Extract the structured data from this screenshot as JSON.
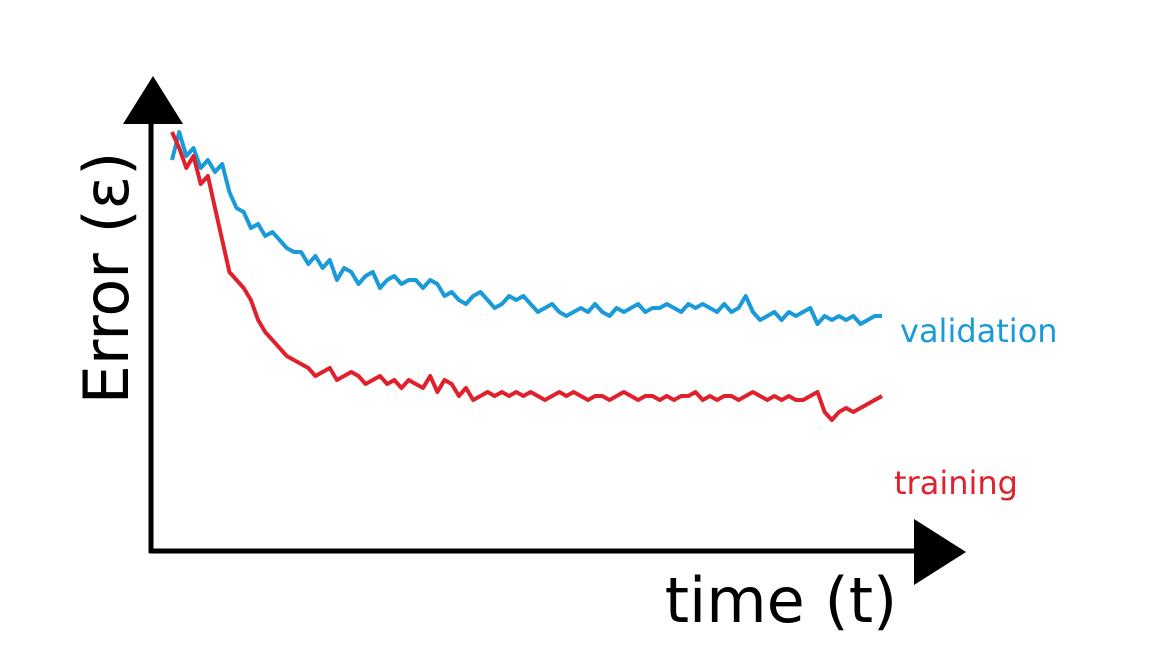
{
  "chart_data": {
    "type": "line",
    "xlabel": "time (t)",
    "ylabel": "Error (ε)",
    "title": "",
    "axis_ticks": "none",
    "grid": false,
    "axis_color": "#000000",
    "series": [
      {
        "name": "validation",
        "color": "#1a9ad8",
        "label_position": "right-end",
        "values": [
          0.9,
          0.97,
          0.91,
          0.93,
          0.88,
          0.9,
          0.87,
          0.89,
          0.82,
          0.78,
          0.77,
          0.73,
          0.74,
          0.71,
          0.72,
          0.7,
          0.68,
          0.67,
          0.67,
          0.64,
          0.66,
          0.63,
          0.65,
          0.6,
          0.63,
          0.62,
          0.59,
          0.61,
          0.62,
          0.58,
          0.6,
          0.61,
          0.59,
          0.6,
          0.6,
          0.58,
          0.6,
          0.59,
          0.56,
          0.57,
          0.55,
          0.54,
          0.56,
          0.57,
          0.55,
          0.53,
          0.54,
          0.56,
          0.55,
          0.56,
          0.54,
          0.52,
          0.53,
          0.54,
          0.52,
          0.51,
          0.52,
          0.53,
          0.52,
          0.54,
          0.52,
          0.51,
          0.53,
          0.52,
          0.53,
          0.54,
          0.52,
          0.53,
          0.53,
          0.54,
          0.53,
          0.52,
          0.54,
          0.53,
          0.54,
          0.53,
          0.52,
          0.54,
          0.52,
          0.53,
          0.56,
          0.52,
          0.5,
          0.51,
          0.52,
          0.5,
          0.52,
          0.51,
          0.52,
          0.53,
          0.49,
          0.51,
          0.5,
          0.51,
          0.5,
          0.51,
          0.49,
          0.5,
          0.51,
          0.51
        ]
      },
      {
        "name": "training",
        "color": "#e0202c",
        "label_position": "right-end",
        "values": [
          0.97,
          0.93,
          0.88,
          0.91,
          0.84,
          0.86,
          0.78,
          0.7,
          0.62,
          0.6,
          0.58,
          0.55,
          0.5,
          0.47,
          0.45,
          0.43,
          0.41,
          0.4,
          0.39,
          0.38,
          0.36,
          0.37,
          0.38,
          0.35,
          0.36,
          0.37,
          0.36,
          0.34,
          0.35,
          0.36,
          0.34,
          0.35,
          0.33,
          0.35,
          0.34,
          0.33,
          0.36,
          0.32,
          0.35,
          0.34,
          0.31,
          0.33,
          0.3,
          0.31,
          0.32,
          0.31,
          0.32,
          0.31,
          0.32,
          0.31,
          0.32,
          0.31,
          0.3,
          0.31,
          0.32,
          0.31,
          0.32,
          0.31,
          0.3,
          0.31,
          0.31,
          0.3,
          0.31,
          0.32,
          0.31,
          0.3,
          0.31,
          0.31,
          0.3,
          0.31,
          0.3,
          0.31,
          0.31,
          0.32,
          0.3,
          0.31,
          0.3,
          0.31,
          0.31,
          0.3,
          0.31,
          0.32,
          0.31,
          0.3,
          0.31,
          0.3,
          0.31,
          0.3,
          0.3,
          0.31,
          0.32,
          0.27,
          0.25,
          0.27,
          0.28,
          0.27,
          0.28,
          0.29,
          0.3,
          0.31
        ]
      }
    ]
  }
}
